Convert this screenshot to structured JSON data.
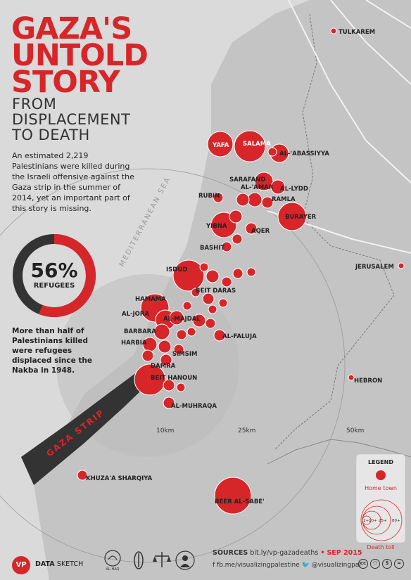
{
  "title": {
    "lines": [
      "GAZA'S",
      "UNTOLD",
      "STORY"
    ],
    "subtitle_lines": [
      "FROM",
      "DISPLACEMENT",
      "TO DEATH"
    ]
  },
  "intro": "An estimated 2,219 Palestinians were killed during the Israeli offensive against the Gaza strip in the summer of 2014, yet an important part of this story is missing.",
  "refugees": {
    "percent_label": "56%",
    "label": "REFUGEES",
    "fraction": 0.56,
    "note": "More than half of Palestinians killed were refugees displaced since the Nakba in 1948."
  },
  "map": {
    "sea_label": "MEDITERRANEAN SEA",
    "strip_label": "GAZA STRIP",
    "distance_labels": [
      "10km",
      "25km",
      "50km"
    ],
    "cities": [
      "TULKAREM",
      "JERUSALEM",
      "HEBRON"
    ],
    "towns": [
      {
        "name": "YAFA",
        "size": "large"
      },
      {
        "name": "SALAMA",
        "size": "large"
      },
      {
        "name": "AL-'ABASSIYYA",
        "size": "medium"
      },
      {
        "name": "SARAFAND AL-'AMAR",
        "size": "medium"
      },
      {
        "name": "AL-LYDD",
        "size": "medium"
      },
      {
        "name": "RAMLA",
        "size": "medium"
      },
      {
        "name": "RUBIN",
        "size": "small"
      },
      {
        "name": "BURAYER",
        "size": "large"
      },
      {
        "name": "YIBNA",
        "size": "large"
      },
      {
        "name": "AQER",
        "size": "small"
      },
      {
        "name": "BASHIT",
        "size": "small"
      },
      {
        "name": "ISDUD",
        "size": "large"
      },
      {
        "name": "BEIT DARAS",
        "size": "medium"
      },
      {
        "name": "HAMAMA",
        "size": "large"
      },
      {
        "name": "AL-JORA",
        "size": "large"
      },
      {
        "name": "AL-MAJDAL",
        "size": "large"
      },
      {
        "name": "AL-FALUJA",
        "size": "small"
      },
      {
        "name": "BARBARA",
        "size": "medium"
      },
      {
        "name": "HARBIA",
        "size": "medium"
      },
      {
        "name": "SIMSIM",
        "size": "small"
      },
      {
        "name": "DAMRA",
        "size": "medium"
      },
      {
        "name": "BEIT HANOUN",
        "size": "large"
      },
      {
        "name": "AL-MUHRAQA",
        "size": "small"
      },
      {
        "name": "KHUZA'A SHARQIYA",
        "size": "small"
      },
      {
        "name": "BEER AL-SABE'",
        "size": "large"
      }
    ]
  },
  "legend": {
    "title": "LEGEND",
    "home_town": "Home town",
    "death_toll": "Death toll",
    "tiers": [
      "1+",
      "10+",
      "25+",
      "80+"
    ]
  },
  "footer": {
    "sources_label": "SOURCES",
    "sources_url": "bit.ly/vp-gazadeaths",
    "date": "SEP 2015",
    "facebook": "fb.me/visualizingpalestine",
    "twitter": "@visualizingpal",
    "vp_logo": "VP",
    "brand_a": "DATA",
    "brand_b": "SKETCH",
    "partner_name": "AL-HAQ"
  },
  "colors": {
    "accent": "#d7262a",
    "land_dark": "#b3b3b3",
    "land": "#c6c6c6",
    "sea": "#dcdcdc",
    "strip": "#333333"
  }
}
